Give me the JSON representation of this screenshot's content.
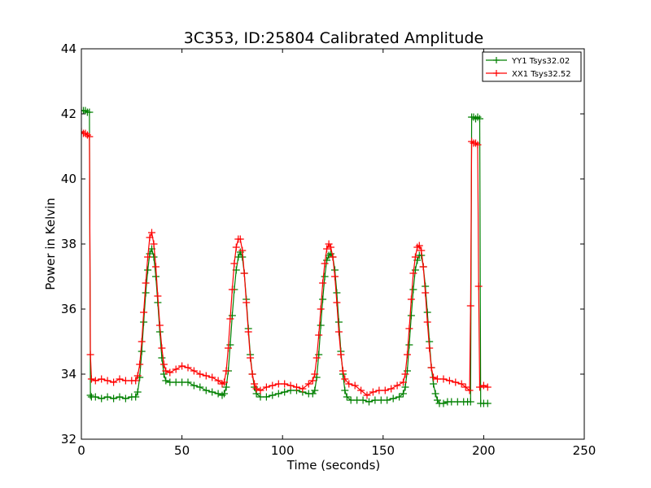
{
  "chart_data": {
    "type": "line",
    "title": "3C353, ID:25804 Calibrated Amplitude",
    "xlabel": "Time (seconds)",
    "ylabel": "Power in Kelvin",
    "xlim": [
      0,
      250
    ],
    "ylim": [
      32,
      44
    ],
    "x_ticks": [
      0,
      50,
      100,
      150,
      200,
      250
    ],
    "y_ticks": [
      32,
      34,
      36,
      38,
      40,
      42,
      44
    ],
    "grid": false,
    "legend_position": "top-right",
    "marker": "+",
    "series": [
      {
        "name": "YY1 Tsys32.02",
        "color": "#008000",
        "points": [
          [
            0,
            42.1
          ],
          [
            1,
            42.1
          ],
          [
            2,
            42.1
          ],
          [
            3,
            42.05
          ],
          [
            4,
            42.05
          ],
          [
            4.5,
            33.35
          ],
          [
            5,
            33.3
          ],
          [
            7,
            33.3
          ],
          [
            10,
            33.25
          ],
          [
            13,
            33.3
          ],
          [
            16,
            33.25
          ],
          [
            19,
            33.3
          ],
          [
            22,
            33.25
          ],
          [
            25,
            33.3
          ],
          [
            27,
            33.3
          ],
          [
            28,
            33.45
          ],
          [
            29,
            33.9
          ],
          [
            30,
            34.7
          ],
          [
            31,
            35.6
          ],
          [
            32,
            36.5
          ],
          [
            33,
            37.2
          ],
          [
            34,
            37.7
          ],
          [
            35,
            37.85
          ],
          [
            36,
            37.6
          ],
          [
            37,
            37.0
          ],
          [
            38,
            36.2
          ],
          [
            39,
            35.3
          ],
          [
            40,
            34.5
          ],
          [
            41,
            34.0
          ],
          [
            42,
            33.8
          ],
          [
            44,
            33.75
          ],
          [
            47,
            33.75
          ],
          [
            50,
            33.75
          ],
          [
            53,
            33.75
          ],
          [
            56,
            33.65
          ],
          [
            59,
            33.6
          ],
          [
            62,
            33.5
          ],
          [
            65,
            33.45
          ],
          [
            68,
            33.4
          ],
          [
            70,
            33.35
          ],
          [
            71,
            33.4
          ],
          [
            72,
            33.6
          ],
          [
            73,
            34.1
          ],
          [
            74,
            34.9
          ],
          [
            75,
            35.8
          ],
          [
            76,
            36.6
          ],
          [
            77,
            37.2
          ],
          [
            78,
            37.6
          ],
          [
            79,
            37.75
          ],
          [
            80,
            37.6
          ],
          [
            81,
            37.1
          ],
          [
            82,
            36.3
          ],
          [
            83,
            35.4
          ],
          [
            84,
            34.6
          ],
          [
            85,
            34.0
          ],
          [
            86,
            33.6
          ],
          [
            87,
            33.4
          ],
          [
            89,
            33.3
          ],
          [
            92,
            33.3
          ],
          [
            95,
            33.35
          ],
          [
            98,
            33.4
          ],
          [
            101,
            33.45
          ],
          [
            104,
            33.5
          ],
          [
            107,
            33.5
          ],
          [
            110,
            33.45
          ],
          [
            113,
            33.4
          ],
          [
            115,
            33.4
          ],
          [
            116,
            33.5
          ],
          [
            117,
            33.9
          ],
          [
            118,
            34.6
          ],
          [
            119,
            35.5
          ],
          [
            120,
            36.3
          ],
          [
            121,
            37.0
          ],
          [
            122,
            37.5
          ],
          [
            123,
            37.65
          ],
          [
            124,
            37.7
          ],
          [
            125,
            37.6
          ],
          [
            126,
            37.2
          ],
          [
            127,
            36.5
          ],
          [
            128,
            35.6
          ],
          [
            129,
            34.7
          ],
          [
            130,
            34.0
          ],
          [
            131,
            33.5
          ],
          [
            132,
            33.3
          ],
          [
            134,
            33.2
          ],
          [
            137,
            33.2
          ],
          [
            140,
            33.2
          ],
          [
            143,
            33.15
          ],
          [
            146,
            33.2
          ],
          [
            149,
            33.2
          ],
          [
            152,
            33.2
          ],
          [
            155,
            33.25
          ],
          [
            158,
            33.3
          ],
          [
            160,
            33.4
          ],
          [
            161,
            33.6
          ],
          [
            162,
            34.1
          ],
          [
            163,
            34.9
          ],
          [
            164,
            35.8
          ],
          [
            165,
            36.6
          ],
          [
            166,
            37.2
          ],
          [
            167,
            37.5
          ],
          [
            168,
            37.65
          ],
          [
            169,
            37.65
          ],
          [
            170,
            37.3
          ],
          [
            171,
            36.7
          ],
          [
            172,
            35.9
          ],
          [
            173,
            35.0
          ],
          [
            174,
            34.2
          ],
          [
            175,
            33.7
          ],
          [
            176,
            33.4
          ],
          [
            177,
            33.2
          ],
          [
            178,
            33.1
          ],
          [
            180,
            33.1
          ],
          [
            182,
            33.15
          ],
          [
            184,
            33.15
          ],
          [
            187,
            33.15
          ],
          [
            190,
            33.15
          ],
          [
            192,
            33.15
          ],
          [
            193.5,
            33.15
          ],
          [
            194,
            41.9
          ],
          [
            195,
            41.9
          ],
          [
            196,
            41.85
          ],
          [
            197,
            41.9
          ],
          [
            198,
            41.85
          ],
          [
            198.5,
            33.1
          ],
          [
            200,
            33.1
          ],
          [
            202,
            33.1
          ]
        ]
      },
      {
        "name": "XX1 Tsys32.52",
        "color": "#ff0000",
        "points": [
          [
            0,
            41.45
          ],
          [
            1,
            41.4
          ],
          [
            2,
            41.4
          ],
          [
            3,
            41.35
          ],
          [
            4,
            41.3
          ],
          [
            4.5,
            34.6
          ],
          [
            5,
            33.85
          ],
          [
            7,
            33.8
          ],
          [
            10,
            33.85
          ],
          [
            13,
            33.8
          ],
          [
            16,
            33.75
          ],
          [
            19,
            33.85
          ],
          [
            22,
            33.8
          ],
          [
            25,
            33.8
          ],
          [
            27,
            33.8
          ],
          [
            28,
            33.95
          ],
          [
            29,
            34.3
          ],
          [
            30,
            35.0
          ],
          [
            31,
            35.9
          ],
          [
            32,
            36.8
          ],
          [
            33,
            37.6
          ],
          [
            34,
            38.2
          ],
          [
            35,
            38.35
          ],
          [
            36,
            38.0
          ],
          [
            37,
            37.3
          ],
          [
            38,
            36.4
          ],
          [
            39,
            35.5
          ],
          [
            40,
            34.8
          ],
          [
            41,
            34.3
          ],
          [
            42,
            34.1
          ],
          [
            44,
            34.05
          ],
          [
            47,
            34.15
          ],
          [
            50,
            34.25
          ],
          [
            53,
            34.2
          ],
          [
            56,
            34.1
          ],
          [
            59,
            34.0
          ],
          [
            62,
            33.95
          ],
          [
            65,
            33.9
          ],
          [
            68,
            33.8
          ],
          [
            70,
            33.7
          ],
          [
            71,
            33.75
          ],
          [
            72,
            34.1
          ],
          [
            73,
            34.8
          ],
          [
            74,
            35.7
          ],
          [
            75,
            36.6
          ],
          [
            76,
            37.4
          ],
          [
            77,
            37.9
          ],
          [
            78,
            38.15
          ],
          [
            79,
            38.15
          ],
          [
            80,
            37.8
          ],
          [
            81,
            37.1
          ],
          [
            82,
            36.2
          ],
          [
            83,
            35.3
          ],
          [
            84,
            34.5
          ],
          [
            85,
            34.0
          ],
          [
            86,
            33.7
          ],
          [
            87,
            33.55
          ],
          [
            89,
            33.5
          ],
          [
            92,
            33.6
          ],
          [
            95,
            33.65
          ],
          [
            98,
            33.7
          ],
          [
            101,
            33.7
          ],
          [
            104,
            33.65
          ],
          [
            107,
            33.6
          ],
          [
            110,
            33.55
          ],
          [
            113,
            33.7
          ],
          [
            115,
            33.8
          ],
          [
            116,
            34.0
          ],
          [
            117,
            34.5
          ],
          [
            118,
            35.2
          ],
          [
            119,
            36.0
          ],
          [
            120,
            36.8
          ],
          [
            121,
            37.4
          ],
          [
            122,
            37.85
          ],
          [
            123,
            38.0
          ],
          [
            124,
            37.9
          ],
          [
            125,
            37.6
          ],
          [
            126,
            37.0
          ],
          [
            127,
            36.2
          ],
          [
            128,
            35.3
          ],
          [
            129,
            34.6
          ],
          [
            130,
            34.1
          ],
          [
            131,
            33.85
          ],
          [
            133,
            33.7
          ],
          [
            136,
            33.65
          ],
          [
            139,
            33.5
          ],
          [
            142,
            33.35
          ],
          [
            145,
            33.45
          ],
          [
            148,
            33.5
          ],
          [
            151,
            33.5
          ],
          [
            154,
            33.55
          ],
          [
            157,
            33.65
          ],
          [
            160,
            33.75
          ],
          [
            161,
            34.0
          ],
          [
            162,
            34.6
          ],
          [
            163,
            35.4
          ],
          [
            164,
            36.3
          ],
          [
            165,
            37.1
          ],
          [
            166,
            37.6
          ],
          [
            167,
            37.9
          ],
          [
            168,
            37.95
          ],
          [
            169,
            37.8
          ],
          [
            170,
            37.3
          ],
          [
            171,
            36.5
          ],
          [
            172,
            35.6
          ],
          [
            173,
            34.8
          ],
          [
            174,
            34.2
          ],
          [
            175,
            33.9
          ],
          [
            177,
            33.85
          ],
          [
            180,
            33.85
          ],
          [
            183,
            33.8
          ],
          [
            186,
            33.75
          ],
          [
            189,
            33.7
          ],
          [
            191,
            33.6
          ],
          [
            193,
            33.5
          ],
          [
            193.5,
            36.1
          ],
          [
            194,
            41.15
          ],
          [
            195,
            41.1
          ],
          [
            196,
            41.1
          ],
          [
            197,
            41.05
          ],
          [
            197.5,
            36.7
          ],
          [
            198,
            33.6
          ],
          [
            200,
            33.65
          ],
          [
            202,
            33.6
          ]
        ]
      }
    ]
  }
}
